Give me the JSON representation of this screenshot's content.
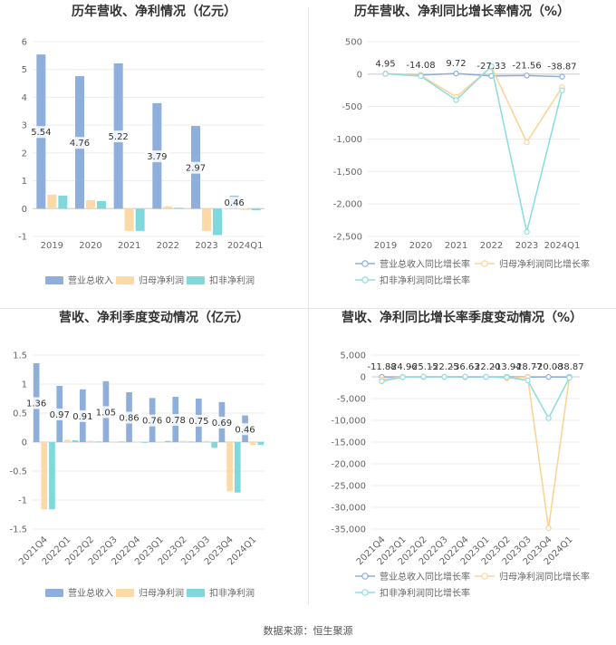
{
  "source": "数据来源：恒生聚源",
  "colors": {
    "revenue_bar": "#8eaedb",
    "net_profit_bar": "#fdd9a7",
    "deduct_profit_bar": "#7fd9dc",
    "revenue_line": "#8eaedb",
    "net_profit_line": "#fcd49b",
    "deduct_profit_line": "#90dde0"
  },
  "chart_data": [
    {
      "type": "bar",
      "title": "历年营收、净利情况（亿元）",
      "categories": [
        "2019",
        "2020",
        "2021",
        "2022",
        "2023",
        "2024Q1"
      ],
      "ylim": [
        -1,
        6
      ],
      "yticks": [
        "-1",
        "0",
        "1",
        "2",
        "3",
        "4",
        "5",
        "6"
      ],
      "series": [
        {
          "name": "营业总收入",
          "values": [
            5.54,
            4.76,
            5.22,
            3.79,
            2.97,
            0.46
          ]
        },
        {
          "name": "归母净利润",
          "values": [
            0.5,
            0.3,
            -0.8,
            0.08,
            -0.8,
            -0.05
          ]
        },
        {
          "name": "扣非净利润",
          "values": [
            0.47,
            0.27,
            -0.8,
            0.03,
            -0.95,
            -0.06
          ]
        }
      ],
      "data_labels": [
        "5.54",
        "4.76",
        "5.22",
        "3.79",
        "2.97",
        "0.46"
      ],
      "legend": [
        "营业总收入",
        "归母净利润",
        "扣非净利润"
      ]
    },
    {
      "type": "line",
      "title": "历年营收、净利同比增长率情况（%）",
      "categories": [
        "2019",
        "2020",
        "2021",
        "2022",
        "2023",
        "2024Q1"
      ],
      "ylim": [
        -2500,
        500
      ],
      "yticks": [
        "-2,500",
        "-2,000",
        "-1,500",
        "-1,000",
        "-500",
        "0",
        "500"
      ],
      "series": [
        {
          "name": "营业总收入同比增长率",
          "values": [
            4.95,
            -14.08,
            9.72,
            -27.33,
            -21.56,
            -38.87
          ]
        },
        {
          "name": "归母净利润同比增长率",
          "values": [
            10,
            -20,
            -350,
            110,
            -1050,
            -200
          ]
        },
        {
          "name": "扣非净利润同比增长率",
          "values": [
            5,
            -30,
            -400,
            120,
            -2430,
            -250
          ]
        }
      ],
      "data_labels": [
        "4.95",
        "-14.08",
        "9.72",
        "-27.33",
        "-21.56",
        "-38.87"
      ],
      "legend": [
        "营业总收入同比增长率",
        "归母净利润同比增长率",
        "扣非净利润同比增长率"
      ]
    },
    {
      "type": "bar",
      "title": "营收、净利季度变动情况（亿元）",
      "categories": [
        "2021Q4",
        "2022Q1",
        "2022Q2",
        "2022Q3",
        "2022Q4",
        "2023Q1",
        "2023Q2",
        "2023Q3",
        "2023Q4",
        "2024Q1"
      ],
      "ylim": [
        -1.5,
        1.5
      ],
      "yticks": [
        "-1.5",
        "-1",
        "-0.5",
        "0",
        "0.5",
        "1",
        "1.5"
      ],
      "series": [
        {
          "name": "营业总收入",
          "values": [
            1.36,
            0.97,
            0.91,
            1.05,
            0.86,
            0.76,
            0.78,
            0.75,
            0.69,
            0.46
          ]
        },
        {
          "name": "归母净利润",
          "values": [
            -1.16,
            0.04,
            0.02,
            0.01,
            0.01,
            0.01,
            0.02,
            0.02,
            -0.85,
            -0.05
          ]
        },
        {
          "name": "扣非净利润",
          "values": [
            -1.16,
            0.03,
            0.01,
            0.01,
            0.0,
            0.02,
            0.01,
            -0.1,
            -0.87,
            -0.05
          ]
        }
      ],
      "data_labels": [
        "1.36",
        "0.97",
        "0.91",
        "1.05",
        "0.86",
        "0.76",
        "0.78",
        "0.75",
        "0.69",
        "0.46"
      ],
      "legend": [
        "营业总收入",
        "归母净利润",
        "扣非净利润"
      ]
    },
    {
      "type": "line",
      "title": "营收、净利同比增长率季度变动情况（%）",
      "categories": [
        "2021Q4",
        "2022Q1",
        "2022Q2",
        "2022Q3",
        "2022Q4",
        "2023Q1",
        "2023Q2",
        "2023Q3",
        "2023Q4",
        "2024Q1"
      ],
      "ylim": [
        -35000,
        5000
      ],
      "yticks": [
        "-35,000",
        "-30,000",
        "-25,000",
        "-20,000",
        "-15,000",
        "-10,000",
        "-5,000",
        "0",
        "5,000"
      ],
      "series": [
        {
          "name": "营业总收入同比增长率",
          "values": [
            -11.88,
            -24.96,
            -25.15,
            -22.25,
            -36.63,
            -22.2,
            -13.94,
            -28.77,
            -20.08,
            -38.87
          ]
        },
        {
          "name": "归母净利润同比增长率",
          "values": [
            -600,
            0,
            50,
            0,
            50,
            50,
            -300,
            -100,
            -34800,
            -200
          ]
        },
        {
          "name": "扣非净利润同比增长率",
          "values": [
            -1000,
            -50,
            50,
            0,
            50,
            0,
            -100,
            -800,
            -9500,
            -200
          ]
        }
      ],
      "data_labels": [
        "-11.88",
        "-24.96",
        "-25.15",
        "-22.25",
        "-36.63",
        "-22.20",
        "-13.94",
        "-28.77",
        "-20.08",
        "-38.87"
      ],
      "legend": [
        "营业总收入同比增长率",
        "归母净利润同比增长率",
        "扣非净利润同比增长率"
      ]
    }
  ]
}
